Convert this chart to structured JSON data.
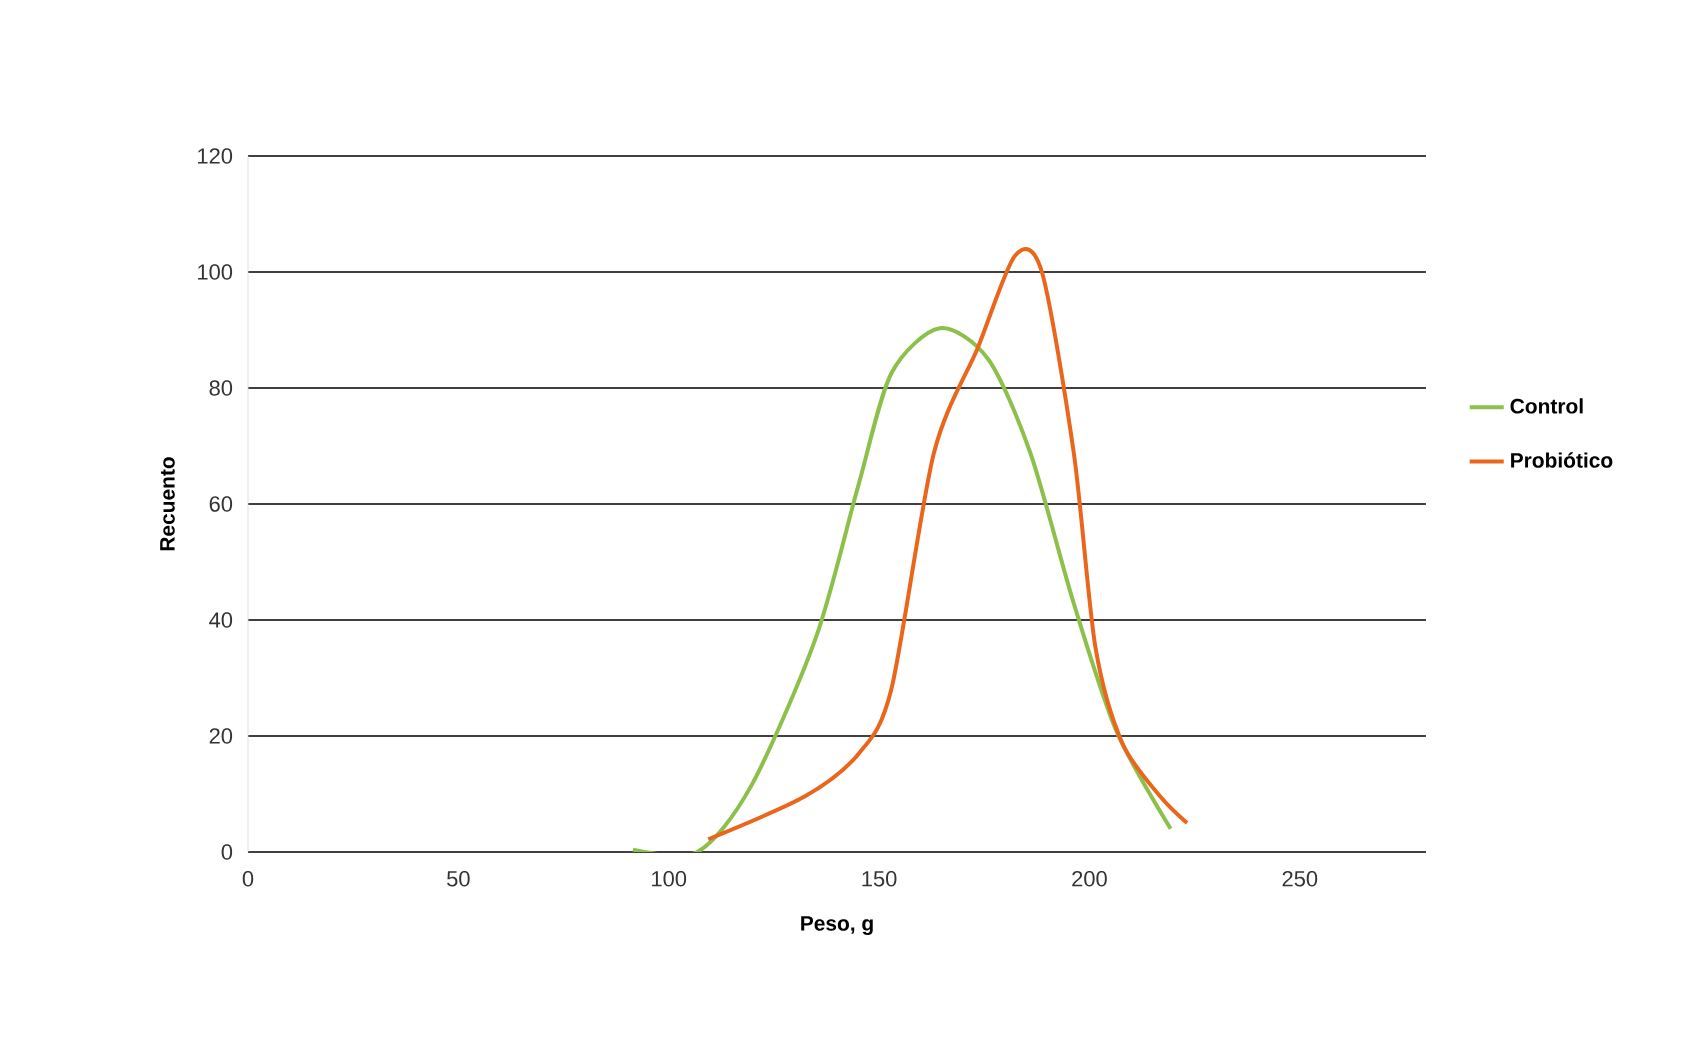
{
  "chart_data": {
    "type": "line",
    "xlabel": "Peso, g",
    "ylabel": "Recuento",
    "xlim": [
      0,
      280
    ],
    "xticks": [
      0,
      50,
      100,
      150,
      200,
      250
    ],
    "ylim": [
      0,
      120
    ],
    "yticks": [
      0,
      20,
      40,
      60,
      80,
      100,
      120
    ],
    "grid": "y",
    "legend": "right",
    "marker": "none",
    "line_style": "solid",
    "series": [
      {
        "name": "Control",
        "color": "#8cc04a",
        "x": [
          91.5,
          106.8,
          119.6,
          135,
          145,
          152.9,
          164.4,
          175.9,
          186,
          196.3,
          206.5,
          219.3
        ],
        "values": [
          0.4,
          0,
          11.4,
          37,
          63,
          82.5,
          90.3,
          85,
          68.7,
          42.8,
          20.7,
          4
        ]
      },
      {
        "name": "Probiótico",
        "color": "#e9661c",
        "x": [
          109.4,
          132.4,
          145.2,
          152.9,
          163,
          173.5,
          182.3,
          188.7,
          196.3,
          201.4,
          207.8,
          216.8,
          223.2
        ],
        "values": [
          2.2,
          9.6,
          17,
          28,
          68.7,
          87,
          102.8,
          100,
          68.7,
          35.4,
          18.8,
          9.6,
          5
        ]
      }
    ]
  }
}
